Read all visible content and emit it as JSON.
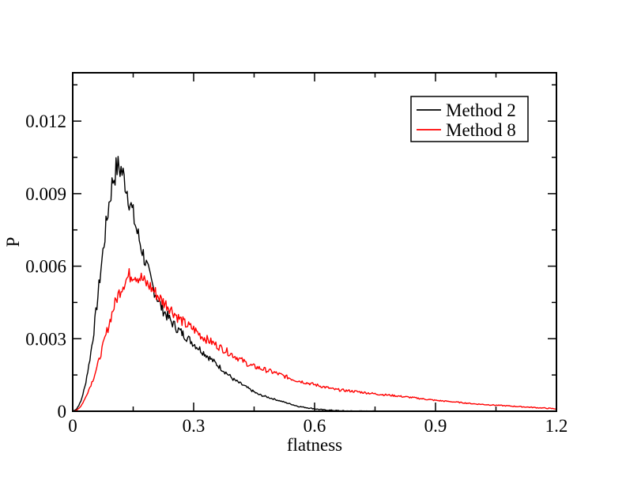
{
  "chart_data": {
    "type": "line",
    "title": "",
    "xlabel": "flatness",
    "ylabel": "P",
    "xlim": [
      0,
      1.2
    ],
    "ylim": [
      0,
      0.014
    ],
    "xticks": [
      0,
      0.3,
      0.6,
      0.9,
      1.2
    ],
    "xtick_labels": [
      "0",
      "0.3",
      "0.6",
      "0.9",
      "1.2"
    ],
    "yticks": [
      0,
      0.003,
      0.006,
      0.009,
      0.012
    ],
    "ytick_labels": [
      "0",
      "0.003",
      "0.006",
      "0.009",
      "0.012"
    ],
    "grid": false,
    "legend": {
      "position": "top-right"
    },
    "series": [
      {
        "name": "Method 2",
        "color": "#000000",
        "x": [
          0,
          0.01,
          0.02,
          0.03,
          0.04,
          0.05,
          0.06,
          0.07,
          0.08,
          0.09,
          0.1,
          0.11,
          0.12,
          0.13,
          0.14,
          0.15,
          0.16,
          0.17,
          0.18,
          0.19,
          0.2,
          0.22,
          0.24,
          0.26,
          0.28,
          0.3,
          0.32,
          0.34,
          0.36,
          0.38,
          0.4,
          0.42,
          0.44,
          0.46,
          0.48,
          0.5,
          0.52,
          0.54,
          0.56,
          0.58,
          0.6,
          0.62,
          0.64,
          0.66,
          0.68,
          0.7,
          0.72,
          0.75
        ],
        "y": [
          0,
          0.0001,
          0.0004,
          0.001,
          0.0019,
          0.003,
          0.0044,
          0.0059,
          0.0073,
          0.0086,
          0.0096,
          0.0101,
          0.01,
          0.0095,
          0.0088,
          0.0081,
          0.0074,
          0.0068,
          0.0062,
          0.0056,
          0.0051,
          0.0043,
          0.0038,
          0.0034,
          0.0031,
          0.0028,
          0.0025,
          0.0022,
          0.0019,
          0.0016,
          0.0013,
          0.0011,
          0.0009,
          0.0007,
          0.0006,
          0.0005,
          0.0004,
          0.0003,
          0.0002,
          0.00015,
          0.0001,
          6e-05,
          4e-05,
          2e-05,
          1e-05,
          5e-06,
          0,
          0
        ]
      },
      {
        "name": "Method 8",
        "color": "#ff0000",
        "x": [
          0,
          0.01,
          0.02,
          0.03,
          0.04,
          0.05,
          0.06,
          0.07,
          0.08,
          0.09,
          0.1,
          0.11,
          0.12,
          0.13,
          0.14,
          0.15,
          0.16,
          0.17,
          0.18,
          0.19,
          0.2,
          0.22,
          0.24,
          0.26,
          0.28,
          0.3,
          0.32,
          0.34,
          0.36,
          0.38,
          0.4,
          0.42,
          0.44,
          0.46,
          0.48,
          0.5,
          0.55,
          0.6,
          0.65,
          0.7,
          0.75,
          0.8,
          0.85,
          0.9,
          0.95,
          1.0,
          1.05,
          1.1,
          1.15,
          1.2
        ],
        "y": [
          0,
          5e-05,
          0.0002,
          0.0005,
          0.0009,
          0.0013,
          0.0018,
          0.0024,
          0.003,
          0.0036,
          0.0042,
          0.0047,
          0.0051,
          0.0054,
          0.0056,
          0.0057,
          0.0056,
          0.0055,
          0.0053,
          0.0052,
          0.005,
          0.0046,
          0.0043,
          0.0039,
          0.0036,
          0.0034,
          0.0031,
          0.0029,
          0.0027,
          0.0025,
          0.0023,
          0.0021,
          0.0019,
          0.0018,
          0.0017,
          0.0016,
          0.0013,
          0.0011,
          0.0009,
          0.00082,
          0.00072,
          0.00064,
          0.00055,
          0.00045,
          0.00038,
          0.0003,
          0.00025,
          0.0002,
          0.00015,
          0.0001
        ]
      }
    ]
  }
}
